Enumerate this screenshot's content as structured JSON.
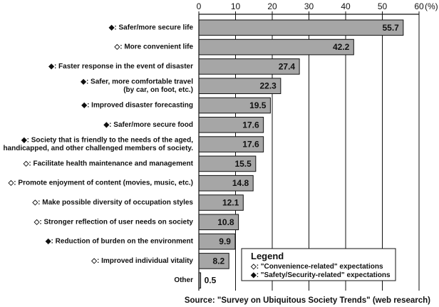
{
  "chart_data": {
    "type": "bar",
    "orientation": "horizontal",
    "categories": [
      [
        "◆: Safer/more secure life"
      ],
      [
        "◇: More convenient life"
      ],
      [
        "◆: Faster response in the event of disaster"
      ],
      [
        "◆: Safer, more comfortable travel",
        "(by car, on foot, etc.)"
      ],
      [
        "◆: Improved disaster forecasting"
      ],
      [
        "◆: Safer/more secure food"
      ],
      [
        "◆: Society that is friendly to the needs of the aged,",
        "handicapped, and other challenged members of society."
      ],
      [
        "◇: Facilitate health maintenance and management"
      ],
      [
        "◇: Promote enjoyment of content (movies, music, etc.)"
      ],
      [
        "◇: Make possible diversity of occupation styles"
      ],
      [
        "◇: Stronger reflection of user needs on society"
      ],
      [
        "◆: Reduction of burden on the environment"
      ],
      [
        "◇: Improved individual vitality"
      ],
      [
        "Other"
      ]
    ],
    "values": [
      55.7,
      42.2,
      27.4,
      22.3,
      19.5,
      17.6,
      17.6,
      15.5,
      14.8,
      12.1,
      10.8,
      9.9,
      8.2,
      0.5
    ],
    "value_labels": [
      "55.7",
      "42.2",
      "27.4",
      "22.3",
      "19.5",
      "17.6",
      "17.6",
      "15.5",
      "14.8",
      "12.1",
      "10.8",
      "9.9",
      "8.2",
      "0.5"
    ],
    "xlim": [
      0,
      60
    ],
    "xticks": [
      0,
      10,
      20,
      30,
      40,
      50,
      60
    ],
    "x_unit": "(%)",
    "grid": "vertical",
    "bar_color": "#a6a6a6",
    "bar_edge_color": "#111111",
    "legend": {
      "title": "Legend",
      "position": "bottom-right",
      "items": [
        "◇: \"Convenience-related\" expectations",
        "◆: \"Safety/Security-related\" expectations"
      ]
    },
    "source": "Source: \"Survey on Ubiquitous Society Trends\" (web research)"
  }
}
